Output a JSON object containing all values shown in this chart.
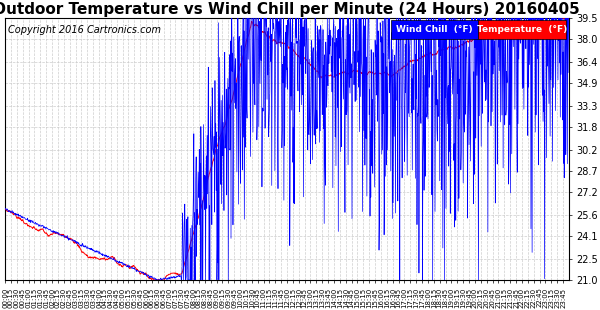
{
  "title": "Outdoor Temperature vs Wind Chill per Minute (24 Hours) 20160405",
  "copyright": "Copyright 2016 Cartronics.com",
  "ylim": [
    21.0,
    39.5
  ],
  "yticks": [
    21.0,
    22.5,
    24.1,
    25.6,
    27.2,
    28.7,
    30.2,
    31.8,
    33.3,
    34.9,
    36.4,
    38.0,
    39.5
  ],
  "wind_chill_color": "red",
  "temperature_color": "blue",
  "background_color": "#ffffff",
  "grid_color": "#c8c8c8",
  "title_fontsize": 11,
  "copyright_fontsize": 7,
  "legend_wind_chill_bg": "blue",
  "legend_temperature_bg": "red",
  "legend_wind_chill_text": "Wind Chill  (°F)",
  "legend_temperature_text": "Temperature  (°F)"
}
